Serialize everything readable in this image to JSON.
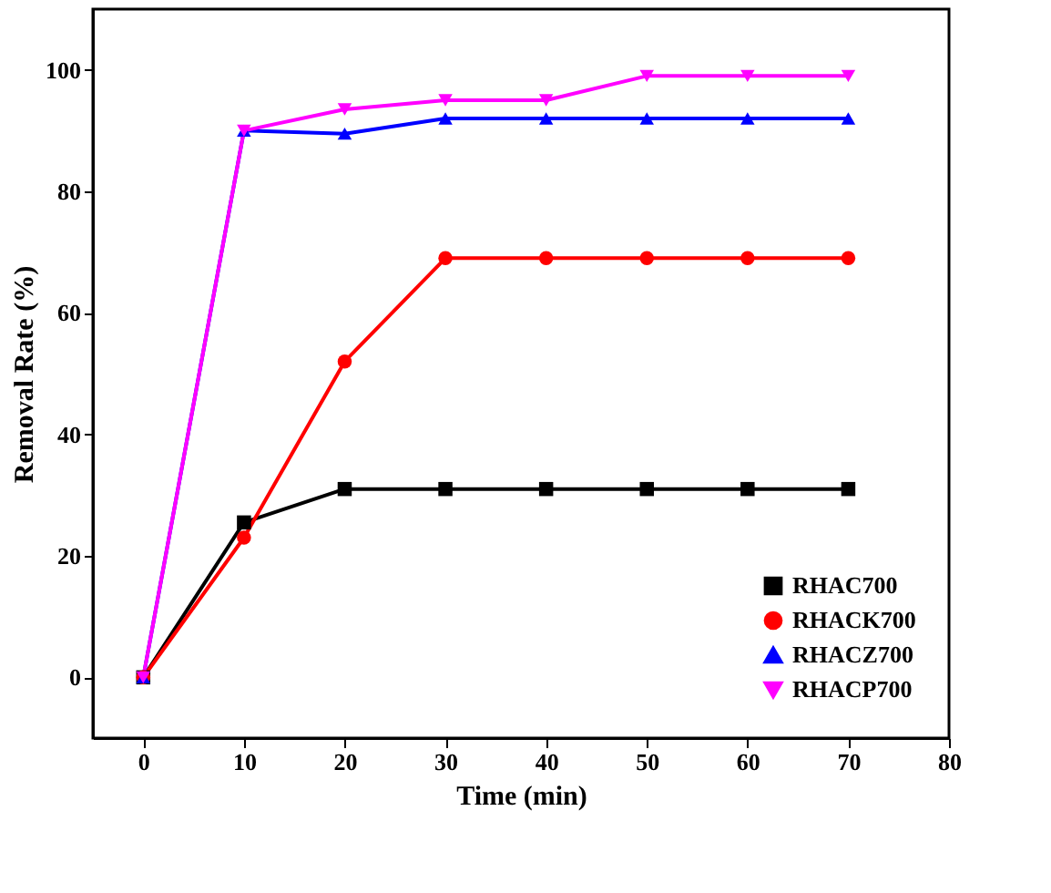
{
  "chart_data": {
    "type": "line",
    "xlabel": "Time (min)",
    "ylabel": "Removal Rate (%)",
    "x": [
      0,
      10,
      20,
      30,
      40,
      50,
      60,
      70
    ],
    "xlim": [
      -5,
      80
    ],
    "xticks": [
      0,
      10,
      20,
      30,
      40,
      50,
      60,
      70,
      80
    ],
    "ylim": [
      -10,
      110
    ],
    "yticks": [
      0,
      20,
      40,
      60,
      80,
      100
    ],
    "grid": false,
    "legend": "bottom right",
    "line_style": "solid",
    "series": [
      {
        "name": "RHAC700",
        "color": "#000000",
        "marker": "square",
        "values": [
          0,
          25.5,
          31,
          31,
          31,
          31,
          31,
          31
        ]
      },
      {
        "name": "RHACK700",
        "color": "#ff0000",
        "marker": "circle",
        "values": [
          0,
          23,
          52,
          69,
          69,
          69,
          69,
          69
        ]
      },
      {
        "name": "RHACZ700",
        "color": "#0000ff",
        "marker": "triangle",
        "values": [
          0,
          90,
          89.5,
          92,
          92,
          92,
          92,
          92
        ]
      },
      {
        "name": "RHACP700",
        "color": "#ff00ff",
        "marker": "triangle-down",
        "values": [
          0,
          90,
          93.5,
          95,
          95,
          99,
          99,
          99
        ]
      }
    ]
  }
}
